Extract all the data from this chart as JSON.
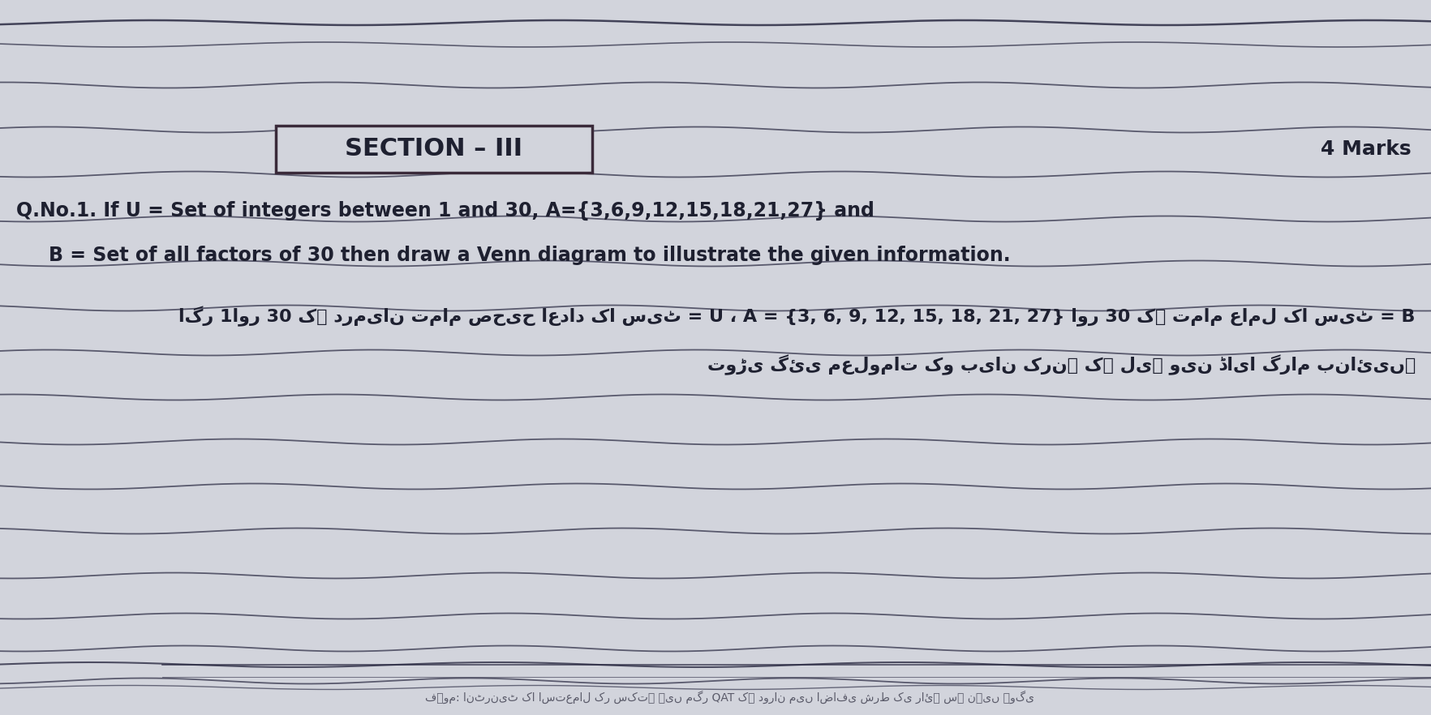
{
  "bg_color": "#b8bcc8",
  "page_bg": "#d2d4dc",
  "section_title": "SECTION – III",
  "marks_text": "4 Marks",
  "line1": "Q.No.1. If U = Set of integers between 1 and 30, A={3,6,9,12,15,18,21,27} and",
  "line2": "B = Set of all factors of 30 then draw a Venn diagram to illustrate the given information.",
  "urdu_line1": "اگر 1اور 30 کے درمیان تمام صحیح اعداد کا سیٹ = U ، A = {3, 6, 9, 12, 15, 18, 21, 27} اور 30 کے تمام عامل کا سیٹ = B",
  "urdu_line2": "توڑی گئی معلومات کو بیان کرنے کے لیے وین ڈایا گرام بنائیں۔",
  "text_color": "#1e2030",
  "line_color": "#2a2a42",
  "box_line_color": "#3a2a3a",
  "bottom_text": "فہوم: انٹرنیٹ کا استعمال کر سکتے ہیں مگر QAT کے دوران میں اضافی شرط کی رائے سے نہیں ہوگی"
}
